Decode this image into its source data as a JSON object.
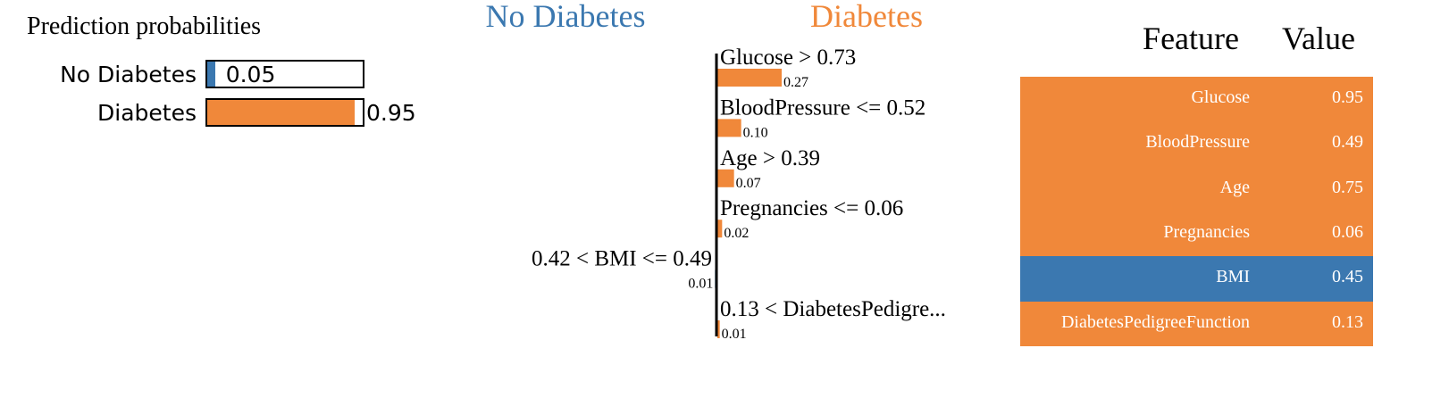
{
  "colors": {
    "negative": "#3b78b0",
    "positive": "#f0883a",
    "axis": "#000000"
  },
  "proba": {
    "title": "Prediction probabilities",
    "rows": [
      {
        "label": "No Diabetes",
        "value": 0.05,
        "value_label": "0.05",
        "color": "#3b78b0"
      },
      {
        "label": "Diabetes",
        "value": 0.95,
        "value_label": "0.95",
        "color": "#f0883a"
      }
    ]
  },
  "chart_data": {
    "type": "bar",
    "orientation": "horizontal-diverging",
    "negative_class": "No Diabetes",
    "positive_class": "Diabetes",
    "max_weight": 0.27,
    "bars": [
      {
        "label": "Glucose > 0.73",
        "value": 0.27,
        "value_label": "0.27",
        "side": "positive"
      },
      {
        "label": "BloodPressure <= 0.52",
        "value": 0.1,
        "value_label": "0.10",
        "side": "positive"
      },
      {
        "label": "Age > 0.39",
        "value": 0.07,
        "value_label": "0.07",
        "side": "positive"
      },
      {
        "label": "Pregnancies <= 0.06",
        "value": 0.02,
        "value_label": "0.02",
        "side": "positive"
      },
      {
        "label": "0.42 < BMI <= 0.49",
        "value": 0.01,
        "value_label": "0.01",
        "side": "negative"
      },
      {
        "label": "0.13 < DiabetesPedigre...",
        "value": 0.01,
        "value_label": "0.01",
        "side": "positive"
      }
    ]
  },
  "feature_table": {
    "headers": {
      "feature": "Feature",
      "value": "Value"
    },
    "rows": [
      {
        "feature": "Glucose",
        "value": "0.95",
        "side": "positive"
      },
      {
        "feature": "BloodPressure",
        "value": "0.49",
        "side": "positive"
      },
      {
        "feature": "Age",
        "value": "0.75",
        "side": "positive"
      },
      {
        "feature": "Pregnancies",
        "value": "0.06",
        "side": "positive"
      },
      {
        "feature": "BMI",
        "value": "0.45",
        "side": "negative"
      },
      {
        "feature": "DiabetesPedigreeFunction",
        "value": "0.13",
        "side": "positive"
      }
    ]
  }
}
